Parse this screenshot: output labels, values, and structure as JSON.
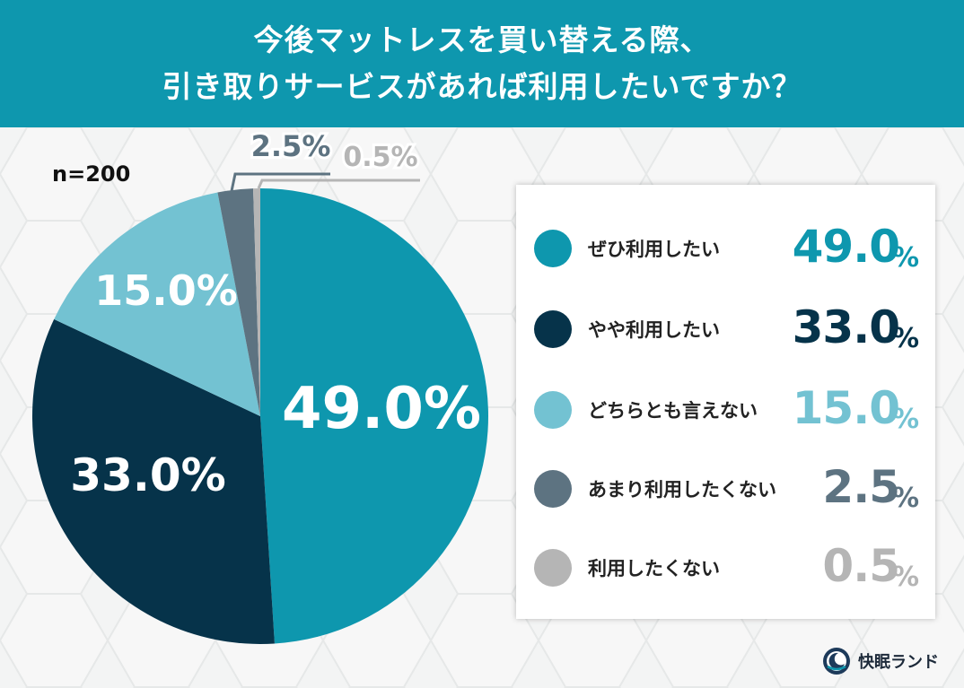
{
  "header": {
    "line1": "今後マットレスを買い替える際、",
    "line2": "引き取りサービスがあれば利用したいですか？"
  },
  "sample_size": "n=200",
  "colors": {
    "header_bg": "#0e97ae",
    "s1": "#0e97ae",
    "s2": "#06334a",
    "s3": "#73c2d2",
    "s4": "#5d7381",
    "s5": "#b5b5b5"
  },
  "chart_data": {
    "type": "pie",
    "title": "今後マットレスを買い替える際、引き取りサービスがあれば利用したいですか？",
    "slices": [
      {
        "label": "ぜひ利用したい",
        "value": 49.0,
        "display": "49.0%",
        "legend_value": "49.0",
        "color": "#0e97ae"
      },
      {
        "label": "やや利用したい",
        "value": 33.0,
        "display": "33.0%",
        "legend_value": "33.0",
        "color": "#06334a"
      },
      {
        "label": "どちらとも言えない",
        "value": 15.0,
        "display": "15.0%",
        "legend_value": "15.0",
        "color": "#73c2d2"
      },
      {
        "label": "あまり利用したくない",
        "value": 2.5,
        "display": "2.5%",
        "legend_value": "2.5",
        "color": "#5d7381"
      },
      {
        "label": "利用したくない",
        "value": 0.5,
        "display": "0.5%",
        "legend_value": "0.5",
        "color": "#b5b5b5"
      }
    ],
    "legend_placement": "right"
  },
  "logo": {
    "text": "快眠ランド",
    "icon": "moon-sleep-icon"
  }
}
